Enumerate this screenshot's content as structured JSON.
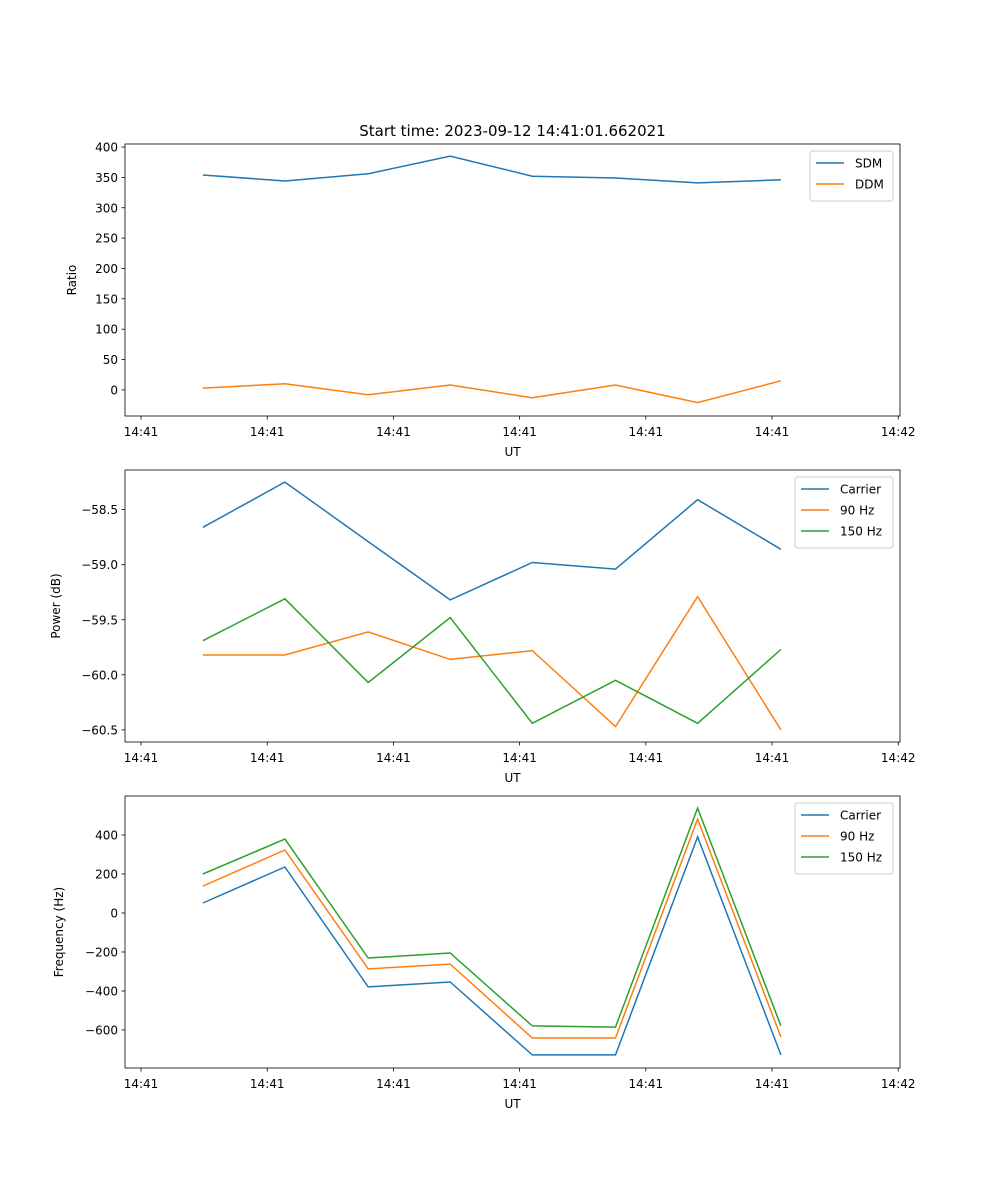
{
  "title": "Start time: 2023-09-12 14:41:01.662021",
  "chart_data": [
    {
      "type": "line",
      "xlabel": "UT",
      "ylabel": "Ratio",
      "xlim": [
        -1.27,
        60.14
      ],
      "ylim": [
        -43,
        405
      ],
      "xticks": [
        0,
        10,
        20,
        30,
        40,
        50,
        60
      ],
      "xtick_labels": [
        "14:41",
        "14:41",
        "14:41",
        "14:41",
        "14:41",
        "14:41",
        "14:42"
      ],
      "yticks": [
        0,
        50,
        100,
        150,
        200,
        250,
        300,
        350,
        400
      ],
      "ytick_labels": [
        "0",
        "50",
        "100",
        "150",
        "200",
        "250",
        "300",
        "350",
        "400"
      ],
      "legend_position": "top-right",
      "x": [
        4.9,
        11.4,
        18.0,
        24.5,
        31.0,
        37.6,
        44.1,
        50.7
      ],
      "series": [
        {
          "name": "SDM",
          "color": "#1f77b4",
          "values": [
            354,
            344,
            356,
            385,
            352,
            349,
            341,
            346
          ]
        },
        {
          "name": "DDM",
          "color": "#ff7f0e",
          "values": [
            3,
            10,
            -8,
            8,
            -13,
            8,
            -21,
            15
          ]
        }
      ]
    },
    {
      "type": "line",
      "xlabel": "UT",
      "ylabel": "Power (dB)",
      "xlim": [
        -1.27,
        60.14
      ],
      "ylim": [
        -60.61,
        -58.14
      ],
      "xticks": [
        0,
        10,
        20,
        30,
        40,
        50,
        60
      ],
      "xtick_labels": [
        "14:41",
        "14:41",
        "14:41",
        "14:41",
        "14:41",
        "14:41",
        "14:42"
      ],
      "yticks": [
        -60.5,
        -60.0,
        -59.5,
        -59.0,
        -58.5
      ],
      "ytick_labels": [
        "−60.5",
        "−60.0",
        "−59.5",
        "−59.0",
        "−58.5"
      ],
      "legend_position": "top-right",
      "x": [
        4.9,
        11.4,
        18.0,
        24.5,
        31.0,
        37.6,
        44.1,
        50.7
      ],
      "series": [
        {
          "name": "Carrier",
          "color": "#1f77b4",
          "values": [
            -58.66,
            -58.25,
            -58.79,
            -59.32,
            -58.98,
            -59.04,
            -58.41,
            -58.86
          ]
        },
        {
          "name": "90 Hz",
          "color": "#ff7f0e",
          "values": [
            -59.82,
            -59.82,
            -59.61,
            -59.86,
            -59.78,
            -60.47,
            -59.29,
            -60.5
          ]
        },
        {
          "name": "150 Hz",
          "color": "#2ca02c",
          "values": [
            -59.69,
            -59.31,
            -60.07,
            -59.48,
            -60.44,
            -60.05,
            -60.44,
            -59.77
          ]
        }
      ]
    },
    {
      "type": "line",
      "xlabel": "UT",
      "ylabel": "Frequency (Hz)",
      "xlim": [
        -1.27,
        60.14
      ],
      "ylim": [
        -795,
        600
      ],
      "xticks": [
        0,
        10,
        20,
        30,
        40,
        50,
        60
      ],
      "xtick_labels": [
        "14:41",
        "14:41",
        "14:41",
        "14:41",
        "14:41",
        "14:41",
        "14:42"
      ],
      "yticks": [
        -600,
        -400,
        -200,
        0,
        200,
        400
      ],
      "ytick_labels": [
        "−600",
        "−400",
        "−200",
        "0",
        "200",
        "400"
      ],
      "legend_position": "top-right",
      "x": [
        4.9,
        11.4,
        18.0,
        24.5,
        31.0,
        37.6,
        44.1,
        50.7
      ],
      "series": [
        {
          "name": "Carrier",
          "color": "#1f77b4",
          "values": [
            51,
            236,
            -379,
            -354,
            -728,
            -728,
            390,
            -728
          ]
        },
        {
          "name": "90 Hz",
          "color": "#ff7f0e",
          "values": [
            138,
            323,
            -287,
            -262,
            -641,
            -641,
            482,
            -636
          ]
        },
        {
          "name": "150 Hz",
          "color": "#2ca02c",
          "values": [
            200,
            379,
            -231,
            -205,
            -579,
            -585,
            538,
            -579
          ]
        }
      ]
    }
  ]
}
